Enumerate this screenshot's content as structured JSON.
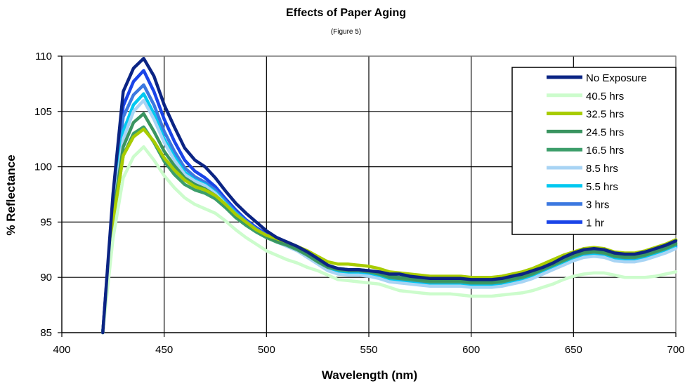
{
  "chart_data": {
    "type": "line",
    "title": "Effects of Paper Aging",
    "subtitle": "(Figure 5)",
    "xlabel": "Wavelength (nm)",
    "ylabel": "% Reflectance",
    "xlim": [
      400,
      700
    ],
    "ylim": [
      85,
      110
    ],
    "x_ticks": [
      400,
      450,
      500,
      550,
      600,
      650,
      700
    ],
    "y_ticks": [
      85,
      90,
      95,
      100,
      105,
      110
    ],
    "grid": true,
    "legend_position": "top-right",
    "x": [
      420,
      425,
      430,
      435,
      440,
      445,
      450,
      455,
      460,
      465,
      470,
      475,
      480,
      485,
      490,
      495,
      500,
      505,
      510,
      515,
      520,
      525,
      530,
      535,
      540,
      545,
      550,
      555,
      560,
      565,
      570,
      575,
      580,
      585,
      590,
      595,
      600,
      605,
      610,
      615,
      620,
      625,
      630,
      635,
      640,
      645,
      650,
      655,
      660,
      665,
      670,
      675,
      680,
      685,
      690,
      695,
      700
    ],
    "series": [
      {
        "name": "No Exposure",
        "color": "#0b2484",
        "values": [
          85,
          97.5,
          106.8,
          108.9,
          109.8,
          108.2,
          105.6,
          103.6,
          101.7,
          100.6,
          100.0,
          99.0,
          97.8,
          96.7,
          95.8,
          95.0,
          94.2,
          93.6,
          93.2,
          92.8,
          92.3,
          91.7,
          91.1,
          90.8,
          90.7,
          90.7,
          90.6,
          90.5,
          90.3,
          90.3,
          90.1,
          90.0,
          89.9,
          89.9,
          89.9,
          89.9,
          89.8,
          89.8,
          89.8,
          89.9,
          90.1,
          90.3,
          90.6,
          90.9,
          91.3,
          91.8,
          92.2,
          92.5,
          92.6,
          92.5,
          92.2,
          92.1,
          92.1,
          92.3,
          92.6,
          92.9,
          93.3
        ]
      },
      {
        "name": "40.5 hrs",
        "color": "#ccfccc",
        "values": [
          85,
          93.5,
          99.0,
          100.9,
          101.8,
          100.6,
          99.2,
          98.1,
          97.2,
          96.6,
          96.2,
          95.8,
          95.1,
          94.3,
          93.6,
          93.0,
          92.4,
          92.0,
          91.6,
          91.3,
          90.9,
          90.6,
          90.2,
          89.8,
          89.7,
          89.6,
          89.5,
          89.4,
          89.1,
          88.8,
          88.7,
          88.6,
          88.5,
          88.5,
          88.5,
          88.4,
          88.3,
          88.3,
          88.3,
          88.4,
          88.5,
          88.6,
          88.8,
          89.1,
          89.4,
          89.8,
          90.1,
          90.3,
          90.4,
          90.4,
          90.2,
          90.0,
          90.0,
          90.0,
          90.1,
          90.3,
          90.5
        ]
      },
      {
        "name": "32.5 hrs",
        "color": "#a8cc00",
        "values": [
          85,
          95.0,
          101.0,
          102.7,
          103.4,
          102.3,
          100.8,
          99.7,
          98.8,
          98.2,
          97.9,
          97.4,
          96.6,
          95.7,
          95.0,
          94.3,
          93.8,
          93.5,
          93.2,
          92.8,
          92.4,
          91.9,
          91.4,
          91.2,
          91.2,
          91.1,
          91.0,
          90.8,
          90.5,
          90.4,
          90.3,
          90.2,
          90.1,
          90.1,
          90.1,
          90.1,
          90.0,
          90.0,
          90.0,
          90.1,
          90.3,
          90.5,
          90.8,
          91.2,
          91.6,
          92.0,
          92.3,
          92.6,
          92.7,
          92.6,
          92.3,
          92.2,
          92.2,
          92.4,
          92.7,
          93.0,
          93.4
        ]
      },
      {
        "name": "24.5 hrs",
        "color": "#3a9460",
        "values": [
          85,
          95.5,
          101.8,
          104.0,
          104.8,
          103.2,
          101.4,
          100.1,
          99.0,
          98.4,
          98.0,
          97.4,
          96.5,
          95.6,
          94.9,
          94.3,
          93.7,
          93.3,
          93.0,
          92.6,
          92.1,
          91.5,
          91.0,
          90.8,
          90.7,
          90.7,
          90.6,
          90.4,
          90.1,
          90.0,
          89.9,
          89.8,
          89.7,
          89.7,
          89.7,
          89.7,
          89.6,
          89.6,
          89.6,
          89.7,
          89.9,
          90.1,
          90.4,
          90.8,
          91.2,
          91.6,
          92.0,
          92.3,
          92.4,
          92.3,
          92.0,
          91.9,
          91.9,
          92.1,
          92.4,
          92.7,
          93.1
        ]
      },
      {
        "name": "16.5 hrs",
        "color": "#3c9e6a",
        "values": [
          85,
          95.0,
          101.0,
          103.0,
          103.6,
          102.2,
          100.5,
          99.3,
          98.4,
          97.9,
          97.6,
          97.1,
          96.3,
          95.4,
          94.7,
          94.1,
          93.6,
          93.2,
          92.9,
          92.5,
          92.0,
          91.4,
          90.9,
          90.7,
          90.6,
          90.6,
          90.5,
          90.3,
          90.0,
          89.9,
          89.8,
          89.7,
          89.6,
          89.6,
          89.6,
          89.6,
          89.5,
          89.5,
          89.5,
          89.6,
          89.8,
          90.0,
          90.3,
          90.7,
          91.1,
          91.5,
          91.9,
          92.2,
          92.3,
          92.2,
          91.9,
          91.8,
          91.8,
          92.0,
          92.3,
          92.6,
          93.0
        ]
      },
      {
        "name": "8.5 hrs",
        "color": "#a8d4f4",
        "values": [
          85,
          96.0,
          102.5,
          105.0,
          106.0,
          104.3,
          102.2,
          100.6,
          99.3,
          98.7,
          98.3,
          97.6,
          96.6,
          95.7,
          94.9,
          94.2,
          93.6,
          93.2,
          92.8,
          92.4,
          91.8,
          91.2,
          90.6,
          90.3,
          90.2,
          90.2,
          90.1,
          89.9,
          89.6,
          89.5,
          89.4,
          89.3,
          89.2,
          89.2,
          89.2,
          89.2,
          89.1,
          89.1,
          89.1,
          89.2,
          89.4,
          89.6,
          89.9,
          90.3,
          90.7,
          91.1,
          91.5,
          91.8,
          91.9,
          91.8,
          91.5,
          91.4,
          91.4,
          91.6,
          91.9,
          92.2,
          92.6
        ]
      },
      {
        "name": "5.5 hrs",
        "color": "#00c8f0",
        "values": [
          85,
          96.3,
          103.2,
          105.6,
          106.6,
          104.8,
          102.5,
          100.9,
          99.5,
          98.8,
          98.4,
          97.7,
          96.7,
          95.8,
          95.0,
          94.3,
          93.7,
          93.3,
          92.9,
          92.5,
          91.9,
          91.3,
          90.7,
          90.4,
          90.3,
          90.3,
          90.2,
          90.0,
          89.7,
          89.6,
          89.5,
          89.4,
          89.3,
          89.3,
          89.3,
          89.3,
          89.2,
          89.2,
          89.2,
          89.3,
          89.5,
          89.7,
          90.0,
          90.4,
          90.8,
          91.2,
          91.6,
          91.9,
          92.0,
          91.9,
          91.6,
          91.5,
          91.5,
          91.7,
          92.0,
          92.3,
          92.7
        ]
      },
      {
        "name": "3 hrs",
        "color": "#3c78e0",
        "values": [
          85,
          96.8,
          104.5,
          106.5,
          107.4,
          105.6,
          103.2,
          101.4,
          99.9,
          99.1,
          98.6,
          97.9,
          96.9,
          95.9,
          95.1,
          94.4,
          93.8,
          93.3,
          92.9,
          92.5,
          91.9,
          91.3,
          90.8,
          90.5,
          90.4,
          90.4,
          90.3,
          90.1,
          89.8,
          89.7,
          89.6,
          89.5,
          89.4,
          89.4,
          89.4,
          89.4,
          89.3,
          89.3,
          89.3,
          89.4,
          89.6,
          89.8,
          90.1,
          90.5,
          90.9,
          91.3,
          91.7,
          92.0,
          92.1,
          92.0,
          91.7,
          91.6,
          91.6,
          91.8,
          92.1,
          92.4,
          92.8
        ]
      },
      {
        "name": "1 hr",
        "color": "#1a44e8",
        "values": [
          85,
          97.0,
          105.5,
          107.7,
          108.7,
          106.8,
          104.3,
          102.3,
          100.6,
          99.6,
          99.0,
          98.2,
          97.1,
          96.1,
          95.2,
          94.5,
          93.9,
          93.4,
          93.0,
          92.6,
          92.0,
          91.4,
          90.9,
          90.6,
          90.5,
          90.5,
          90.4,
          90.2,
          89.9,
          89.8,
          89.7,
          89.6,
          89.5,
          89.5,
          89.5,
          89.5,
          89.4,
          89.4,
          89.4,
          89.5,
          89.7,
          89.9,
          90.2,
          90.6,
          91.0,
          91.4,
          91.8,
          92.1,
          92.2,
          92.1,
          91.8,
          91.7,
          91.7,
          91.9,
          92.2,
          92.5,
          92.9
        ]
      }
    ]
  }
}
